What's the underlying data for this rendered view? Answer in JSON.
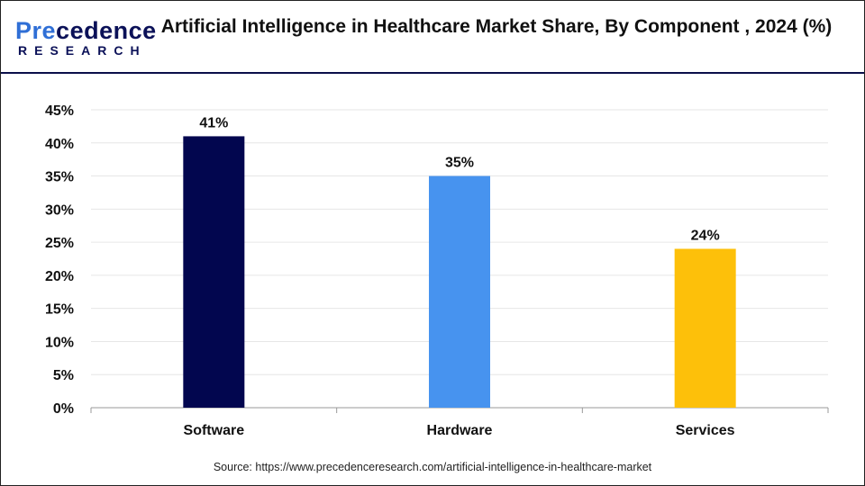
{
  "brand": {
    "name_part1": "Pre",
    "name_part2": "cedence",
    "subtitle": "RESEARCH"
  },
  "chart_data": {
    "type": "bar",
    "title": "Artificial Intelligence in Healthcare Market Share, By Component , 2024 (%)",
    "categories": [
      "Software",
      "Hardware",
      "Services"
    ],
    "values": [
      41,
      35,
      24
    ],
    "data_labels": [
      "41%",
      "35%",
      "24%"
    ],
    "colors": [
      "#02064f",
      "#4793ef",
      "#fdc00a"
    ],
    "xlabel": "",
    "ylabel": "",
    "ylim": [
      0,
      45
    ],
    "yticks": [
      0,
      5,
      10,
      15,
      20,
      25,
      30,
      35,
      40,
      45
    ],
    "ytick_labels": [
      "0%",
      "5%",
      "10%",
      "15%",
      "20%",
      "25%",
      "30%",
      "35%",
      "40%",
      "45%"
    ],
    "grid": true,
    "legend": "none"
  },
  "source": "Source: https://www.precedenceresearch.com/artificial-intelligence-in-healthcare-market"
}
